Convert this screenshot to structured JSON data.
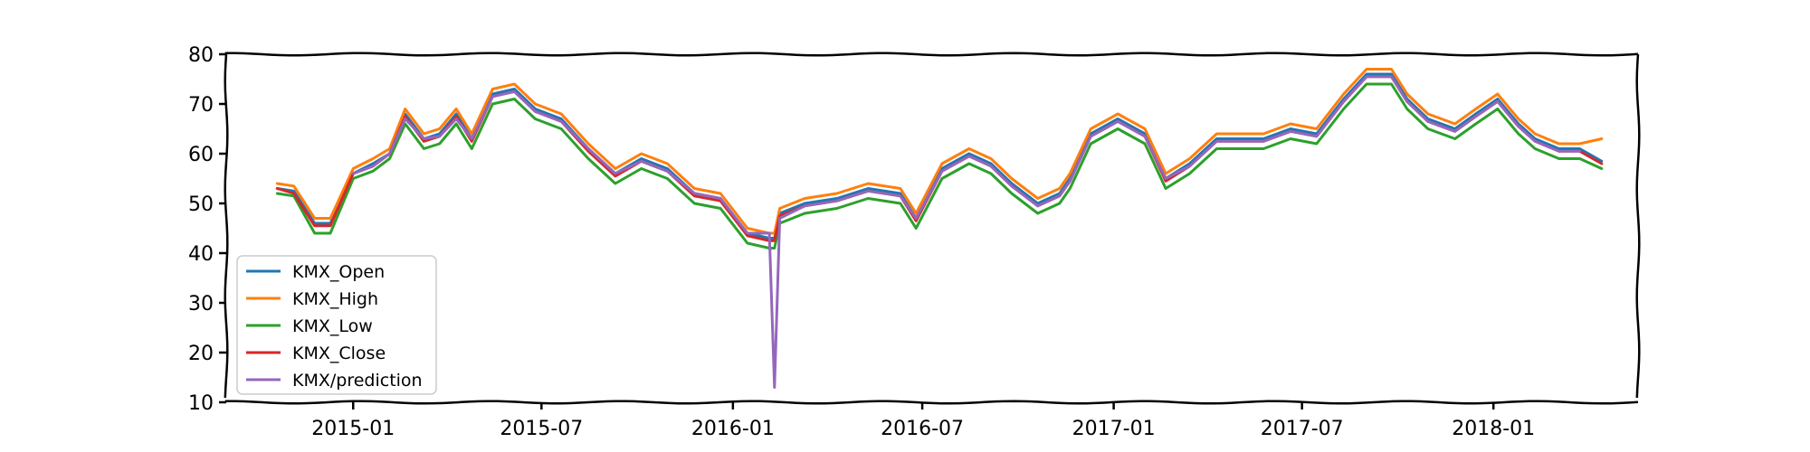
{
  "chart_data": {
    "type": "line",
    "title": "",
    "xlabel": "",
    "ylabel": "",
    "xlim": [
      "2014-09-01",
      "2018-05-20"
    ],
    "ylim": [
      10,
      80
    ],
    "yticks": [
      10,
      20,
      30,
      40,
      50,
      60,
      70,
      80
    ],
    "xticks": [
      {
        "date": "2015-01-01",
        "label": "2015-01"
      },
      {
        "date": "2015-07-01",
        "label": "2015-07"
      },
      {
        "date": "2016-01-01",
        "label": "2016-01"
      },
      {
        "date": "2016-07-01",
        "label": "2016-07"
      },
      {
        "date": "2017-01-01",
        "label": "2017-01"
      },
      {
        "date": "2017-07-01",
        "label": "2017-07"
      },
      {
        "date": "2018-01-01",
        "label": "2018-01"
      }
    ],
    "grid": false,
    "legend_position": "lower-left",
    "dates": [
      "2014-10-20",
      "2014-11-05",
      "2014-11-25",
      "2014-12-10",
      "2015-01-01",
      "2015-01-20",
      "2015-02-05",
      "2015-02-20",
      "2015-03-10",
      "2015-03-25",
      "2015-04-10",
      "2015-04-25",
      "2015-05-15",
      "2015-06-05",
      "2015-06-25",
      "2015-07-20",
      "2015-08-15",
      "2015-09-10",
      "2015-10-05",
      "2015-10-30",
      "2015-11-25",
      "2015-12-20",
      "2016-01-15",
      "2016-02-05",
      "2016-02-10",
      "2016-02-15",
      "2016-03-10",
      "2016-04-10",
      "2016-05-10",
      "2016-06-10",
      "2016-06-25",
      "2016-07-20",
      "2016-08-15",
      "2016-09-05",
      "2016-09-25",
      "2016-10-20",
      "2016-11-10",
      "2016-11-20",
      "2016-12-10",
      "2017-01-05",
      "2017-01-31",
      "2017-02-20",
      "2017-03-15",
      "2017-04-10",
      "2017-05-05",
      "2017-05-25",
      "2017-06-20",
      "2017-07-15",
      "2017-08-10",
      "2017-09-01",
      "2017-09-25",
      "2017-10-10",
      "2017-10-30",
      "2017-11-25",
      "2017-12-15",
      "2018-01-05",
      "2018-01-25",
      "2018-02-10",
      "2018-03-05",
      "2018-03-25",
      "2018-04-15"
    ],
    "series": [
      {
        "name": "KMX_Open",
        "color": "#1f77b4",
        "values": [
          53,
          52.5,
          46,
          46,
          56,
          58,
          60,
          68,
          63,
          64,
          68,
          63,
          72,
          73,
          69,
          67,
          61,
          56,
          59,
          57,
          52,
          51,
          44,
          43,
          43,
          48,
          50,
          51,
          53,
          52,
          47,
          57,
          60,
          58,
          54,
          50,
          52,
          55,
          64,
          67,
          64,
          55,
          58,
          63,
          63,
          63,
          65,
          64,
          71,
          76,
          76,
          71,
          67,
          65,
          68,
          71,
          66,
          63,
          61,
          61,
          58.5
        ]
      },
      {
        "name": "KMX_High",
        "color": "#ff7f0e",
        "values": [
          54,
          53.5,
          47,
          47,
          57,
          59,
          61,
          69,
          64,
          65,
          69,
          64,
          73,
          74,
          70,
          68,
          62,
          57,
          60,
          58,
          53,
          52,
          45,
          44,
          44,
          49,
          51,
          52,
          54,
          53,
          48,
          58,
          61,
          59,
          55,
          51,
          53,
          56,
          65,
          68,
          65,
          56,
          59,
          64,
          64,
          64,
          66,
          65,
          72,
          77,
          77,
          72,
          68,
          66,
          69,
          72,
          67,
          64,
          62,
          62,
          63
        ]
      },
      {
        "name": "KMX_Low",
        "color": "#2ca02c",
        "values": [
          52,
          51.5,
          44,
          44,
          55,
          56.5,
          59,
          66,
          61,
          62,
          66,
          61,
          70,
          71,
          67,
          65,
          59,
          54,
          57,
          55,
          50,
          49,
          42,
          41,
          41,
          46,
          48,
          49,
          51,
          50,
          45,
          55,
          58,
          56,
          52,
          48,
          50,
          53,
          62,
          65,
          62,
          53,
          56,
          61,
          61,
          61,
          63,
          62,
          69,
          74,
          74,
          69,
          65,
          63,
          66,
          69,
          64,
          61,
          59,
          59,
          57
        ]
      },
      {
        "name": "KMX_Close",
        "color": "#d62728",
        "values": [
          53,
          52,
          45.5,
          45.5,
          56,
          57.5,
          60,
          67.5,
          62.5,
          63.5,
          67.5,
          62.5,
          71.5,
          72.5,
          68.5,
          66.5,
          60.5,
          55.5,
          58.5,
          56.5,
          51.5,
          50.5,
          43.5,
          42.5,
          42.5,
          47.5,
          49.5,
          50.5,
          52.5,
          51.5,
          46.5,
          56.5,
          59.5,
          57.5,
          53.5,
          49.5,
          51.5,
          54.5,
          63.5,
          66.5,
          63.5,
          54.5,
          57.5,
          62.5,
          62.5,
          62.5,
          64.5,
          63.5,
          70.5,
          75.5,
          75.5,
          70.5,
          66.5,
          64.5,
          67.5,
          70.5,
          65.5,
          62.5,
          60.5,
          60.5,
          58
        ]
      },
      {
        "name": "KMX/prediction",
        "color": "#9467bd",
        "values": [
          null,
          null,
          null,
          null,
          56,
          57.5,
          60,
          67,
          63,
          63.5,
          67,
          63,
          71.5,
          72.5,
          68.5,
          66.5,
          61,
          56,
          58.5,
          56.5,
          52,
          51,
          44,
          44,
          13,
          47,
          49.5,
          50.5,
          52.5,
          51.5,
          47,
          56.5,
          59.5,
          57.5,
          53.5,
          49.5,
          51.5,
          54.5,
          63.5,
          66.5,
          63.5,
          55,
          57.5,
          62.5,
          62.5,
          62.5,
          64.5,
          63.5,
          70.5,
          75.5,
          75.5,
          70.5,
          66.5,
          64.5,
          67.5,
          70.5,
          65.5,
          62.5,
          60.5,
          60.5,
          null
        ]
      }
    ]
  }
}
